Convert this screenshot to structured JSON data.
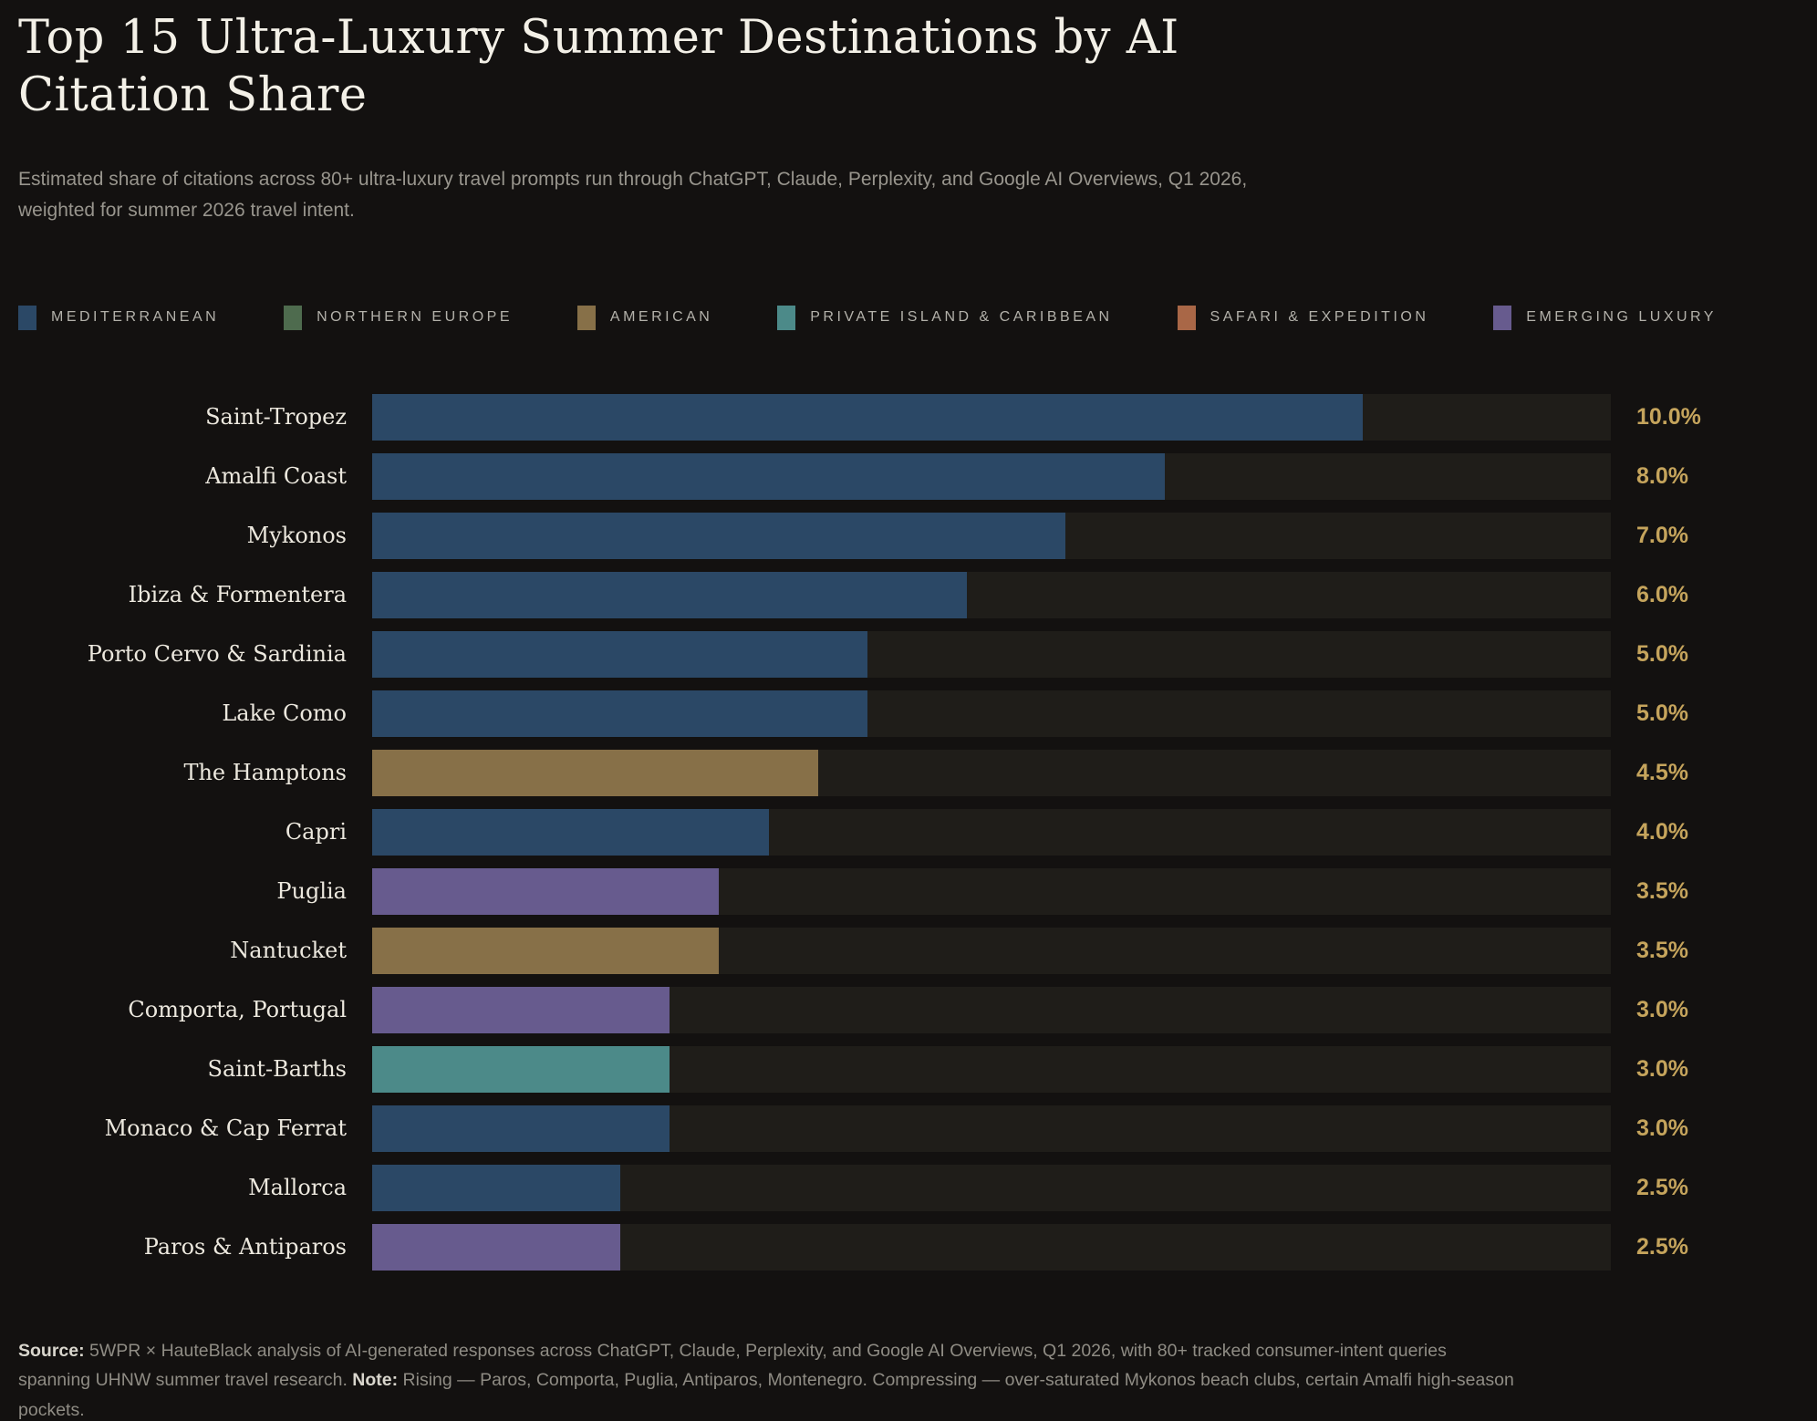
{
  "header": {
    "title": "Top 15 Ultra-Luxury Summer Destinations by AI Citation Share",
    "subtitle": "Estimated share of citations across 80+ ultra-luxury travel prompts run through ChatGPT, Claude, Perplexity, and Google AI Overviews, Q1 2026, weighted for summer 2026 travel intent."
  },
  "colors": {
    "mediterranean": "#2b4866",
    "northern_europe": "#4e6b4e",
    "american": "#877048",
    "island": "#4c8a89",
    "safari": "#a96747",
    "emerging": "#675b8e",
    "value_text": "#c5a45c",
    "track": "#1f1d19",
    "background": "#131110"
  },
  "legend": {
    "items": [
      {
        "id": "mediterranean",
        "label": "MEDITERRANEAN"
      },
      {
        "id": "northern_europe",
        "label": "NORTHERN EUROPE"
      },
      {
        "id": "american",
        "label": "AMERICAN"
      },
      {
        "id": "island",
        "label": "PRIVATE ISLAND & CARIBBEAN"
      },
      {
        "id": "safari",
        "label": "SAFARI & EXPEDITION"
      },
      {
        "id": "emerging",
        "label": "EMERGING LUXURY"
      }
    ]
  },
  "chart_data": {
    "type": "bar",
    "orientation": "horizontal",
    "title": "Top 15 Ultra-Luxury Summer Destinations by AI Citation Share",
    "xlabel": "",
    "ylabel": "",
    "unit": "%",
    "xlim": [
      0,
      12.5
    ],
    "grid": false,
    "legend_position": "top",
    "rows": [
      {
        "label": "Saint-Tropez",
        "value": 10.0,
        "display": "10.0%",
        "category": "mediterranean"
      },
      {
        "label": "Amalfi Coast",
        "value": 8.0,
        "display": "8.0%",
        "category": "mediterranean"
      },
      {
        "label": "Mykonos",
        "value": 7.0,
        "display": "7.0%",
        "category": "mediterranean"
      },
      {
        "label": "Ibiza & Formentera",
        "value": 6.0,
        "display": "6.0%",
        "category": "mediterranean"
      },
      {
        "label": "Porto Cervo & Sardinia",
        "value": 5.0,
        "display": "5.0%",
        "category": "mediterranean"
      },
      {
        "label": "Lake Como",
        "value": 5.0,
        "display": "5.0%",
        "category": "mediterranean"
      },
      {
        "label": "The Hamptons",
        "value": 4.5,
        "display": "4.5%",
        "category": "american"
      },
      {
        "label": "Capri",
        "value": 4.0,
        "display": "4.0%",
        "category": "mediterranean"
      },
      {
        "label": "Puglia",
        "value": 3.5,
        "display": "3.5%",
        "category": "emerging"
      },
      {
        "label": "Nantucket",
        "value": 3.5,
        "display": "3.5%",
        "category": "american"
      },
      {
        "label": "Comporta, Portugal",
        "value": 3.0,
        "display": "3.0%",
        "category": "emerging"
      },
      {
        "label": "Saint-Barths",
        "value": 3.0,
        "display": "3.0%",
        "category": "island"
      },
      {
        "label": "Monaco & Cap Ferrat",
        "value": 3.0,
        "display": "3.0%",
        "category": "mediterranean"
      },
      {
        "label": "Mallorca",
        "value": 2.5,
        "display": "2.5%",
        "category": "mediterranean"
      },
      {
        "label": "Paros & Antiparos",
        "value": 2.5,
        "display": "2.5%",
        "category": "emerging"
      }
    ]
  },
  "footer": {
    "source_label": "Source:",
    "source_text": " 5WPR × HauteBlack analysis of AI-generated responses across ChatGPT, Claude, Perplexity, and Google AI Overviews, Q1 2026, with 80+ tracked consumer-intent queries spanning UHNW summer travel research. ",
    "note_label": "Note:",
    "note_text": " Rising — Paros, Comporta, Puglia, Antiparos, Montenegro. Compressing — over-saturated Mykonos beach clubs, certain Amalfi high-season pockets."
  }
}
